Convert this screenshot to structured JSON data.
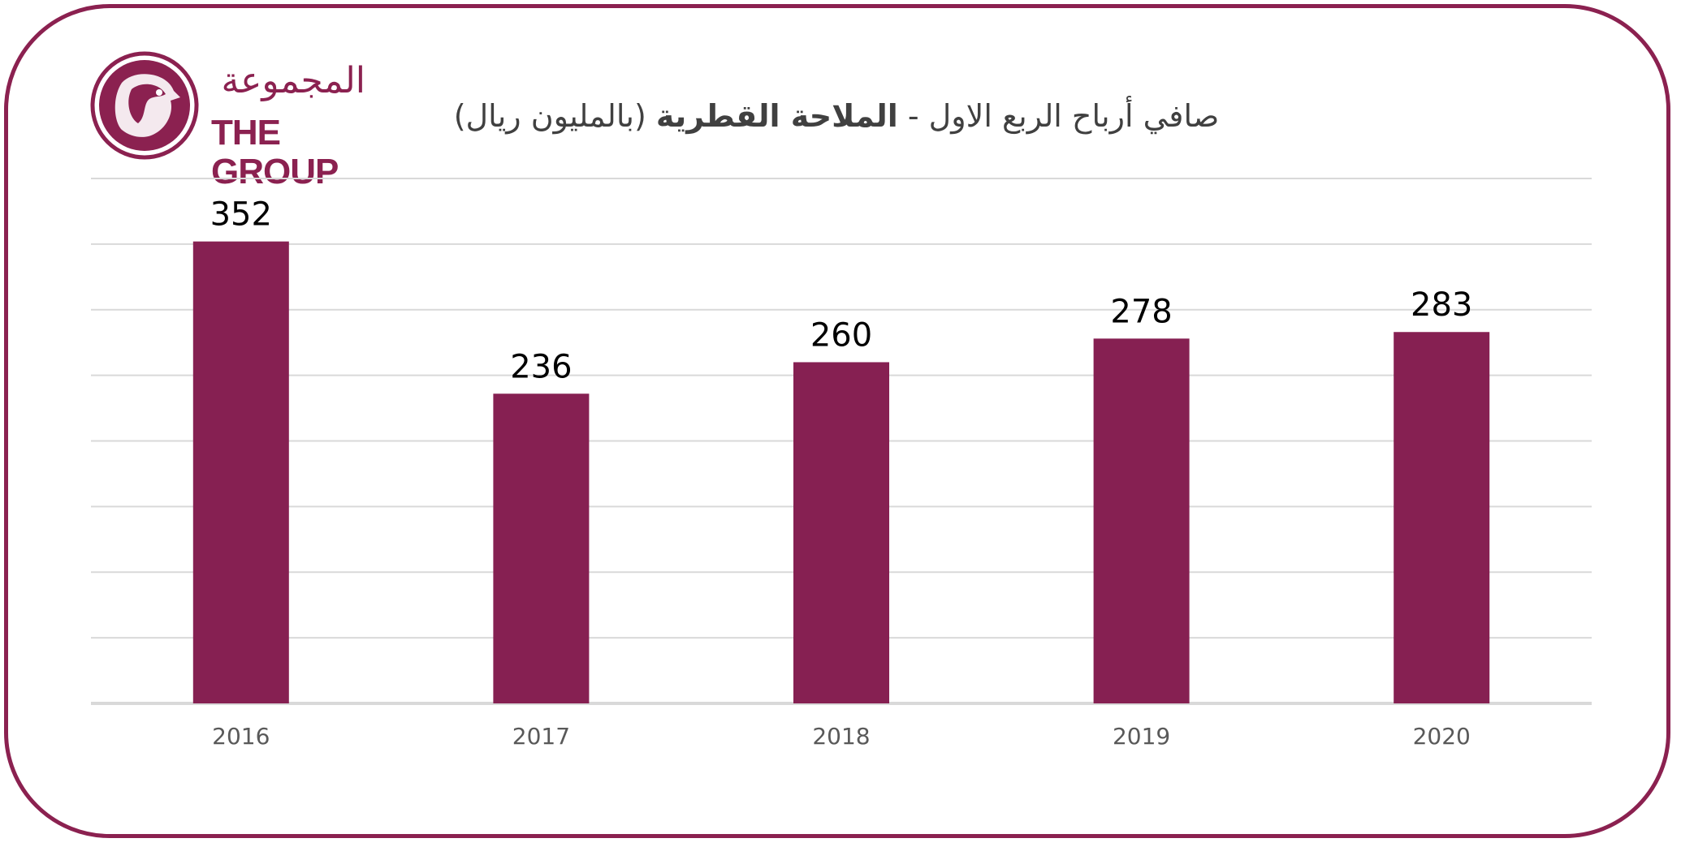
{
  "logo": {
    "arabic": "المجموعة",
    "english": "THE GROUP"
  },
  "colors": {
    "brand": "#8b2150",
    "bar": "#862052",
    "grid": "#d9d9d9",
    "axis_text": "#595959",
    "label_text": "#000000"
  },
  "title": {
    "part1": "صافي أرباح الربع الاول - ",
    "part2": "الملاحة القطرية",
    "part3": " (بالمليون ريال)"
  },
  "chart_data": {
    "type": "bar",
    "categories": [
      "2016",
      "2017",
      "2018",
      "2019",
      "2020"
    ],
    "values": [
      352,
      236,
      260,
      278,
      283
    ],
    "title": "صافي أرباح الربع الاول - الملاحة القطرية (بالمليون ريال)",
    "xlabel": "",
    "ylabel": "",
    "ylim": [
      0,
      400
    ],
    "grid": true,
    "data_labels": true,
    "y_tick_labels_visible": false
  }
}
